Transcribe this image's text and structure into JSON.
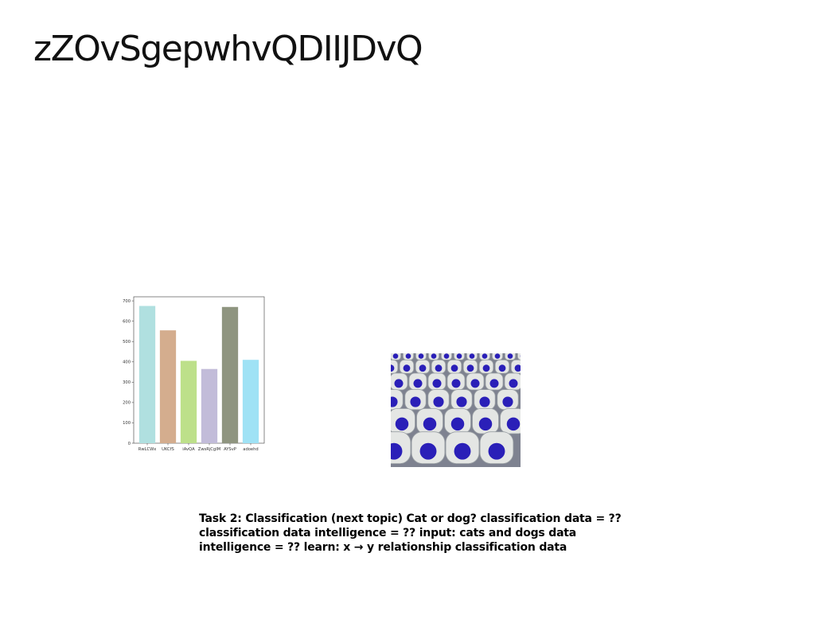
{
  "slide": {
    "title": "zZOvSgepwhvQDIIJDvQ",
    "caption": "Task 2: Classification (next topic) Cat or dog? classification data = ?? classification data intelligence = ?? input: cats and dogs data intelligence = ?? learn: x → y relationship classification data"
  },
  "chart_data": {
    "type": "bar",
    "categories": [
      "RwLCWx",
      "UKCfS",
      "iAvQA",
      "ZwsRjCgIM",
      "AYSvP",
      "adoehd"
    ],
    "values": [
      675,
      555,
      405,
      365,
      670,
      410
    ],
    "bar_colors": [
      "#b0e0e0",
      "#d4ad8e",
      "#bde08a",
      "#c2bcd9",
      "#8f9580",
      "#9fe2f5"
    ],
    "y_ticks": [
      0,
      100,
      200,
      300,
      400,
      500,
      600,
      700
    ],
    "ylim": [
      0,
      720
    ],
    "title": "",
    "xlabel": "",
    "ylabel": ""
  },
  "photo": {
    "icon": "stadium-seats-photo",
    "seat_color": "#e4e6e4",
    "badge_color": "#2a1fb8",
    "background_color": "#7e8290"
  }
}
